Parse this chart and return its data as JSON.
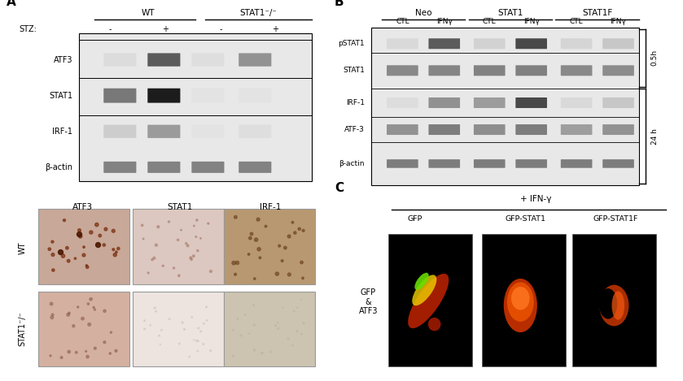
{
  "figure_width": 8.39,
  "figure_height": 4.69,
  "bg_color": "#ffffff",
  "panel_A_label": "A",
  "panel_B_label": "B",
  "panel_C_label": "C",
  "wt_label": "WT",
  "stat1ko_label": "STAT1⁻/⁻",
  "stz_label": "STZ:",
  "wb_A_rows": [
    "ATF3",
    "STAT1",
    "IRF-1",
    "β-actin"
  ],
  "wb_A_cols": [
    "-",
    "+",
    "-",
    "+"
  ],
  "wb_A_col_groups": [
    "WT",
    "STAT1⁻/⁻"
  ],
  "wb_B_rows": [
    "pSTAT1",
    "STAT1",
    "IRF-1",
    "ATF-3",
    "β-actin"
  ],
  "wb_B_col_groups": [
    "Neo",
    "STAT1",
    "STAT1F"
  ],
  "wb_B_subcols": [
    "CTL",
    "IFNγ"
  ],
  "wb_B_time_labels": [
    "0.5h",
    "24 h"
  ],
  "ihc_row_labels": [
    "WT",
    "STAT1⁻/⁻"
  ],
  "ihc_col_labels": [
    "ATF3",
    "STAT1",
    "IRF-1"
  ],
  "ifn_label": "+ IFN-γ",
  "gfp_col_labels": [
    "GFP",
    "GFP-STAT1",
    "GFP-STAT1F"
  ],
  "gfp_row_label": "GFP\n&\nATF3"
}
